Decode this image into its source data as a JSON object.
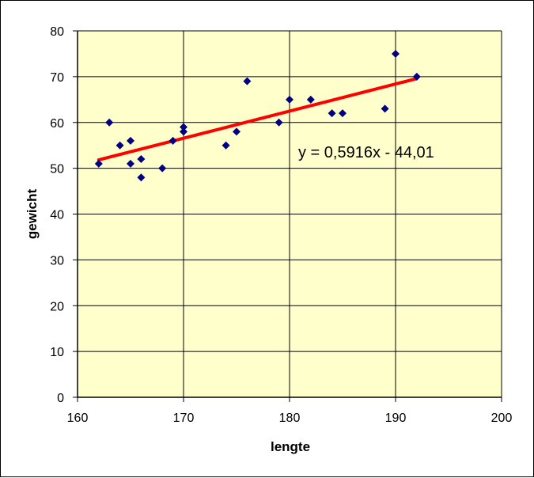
{
  "chart_data": {
    "type": "scatter",
    "xlabel": "lengte",
    "ylabel": "gewicht",
    "xlim": [
      160,
      200
    ],
    "ylim": [
      0,
      80
    ],
    "x_ticks": [
      160,
      170,
      180,
      190,
      200
    ],
    "y_ticks": [
      0,
      10,
      20,
      30,
      40,
      50,
      60,
      70,
      80
    ],
    "grid": true,
    "legend": "none",
    "colors": {
      "plot_background": "#FFFFCC",
      "marker": "#000080",
      "trendline": "#FF0000",
      "grid": "#000000"
    },
    "series": [
      {
        "marker": "diamond",
        "points": [
          [
            162,
            51
          ],
          [
            163,
            60
          ],
          [
            164,
            55
          ],
          [
            165,
            56
          ],
          [
            165,
            51
          ],
          [
            166,
            52
          ],
          [
            166,
            48
          ],
          [
            168,
            50
          ],
          [
            169,
            56
          ],
          [
            170,
            59
          ],
          [
            170,
            58
          ],
          [
            174,
            55
          ],
          [
            175,
            58
          ],
          [
            176,
            69
          ],
          [
            179,
            60
          ],
          [
            180,
            65
          ],
          [
            182,
            65
          ],
          [
            184,
            62
          ],
          [
            185,
            62
          ],
          [
            189,
            63
          ],
          [
            190,
            75
          ],
          [
            192,
            70
          ]
        ]
      }
    ],
    "trendline": {
      "slope": 0.5916,
      "intercept": -44.01,
      "x_range": [
        162,
        192
      ],
      "label": "y = 0,5916x - 44,01"
    }
  }
}
